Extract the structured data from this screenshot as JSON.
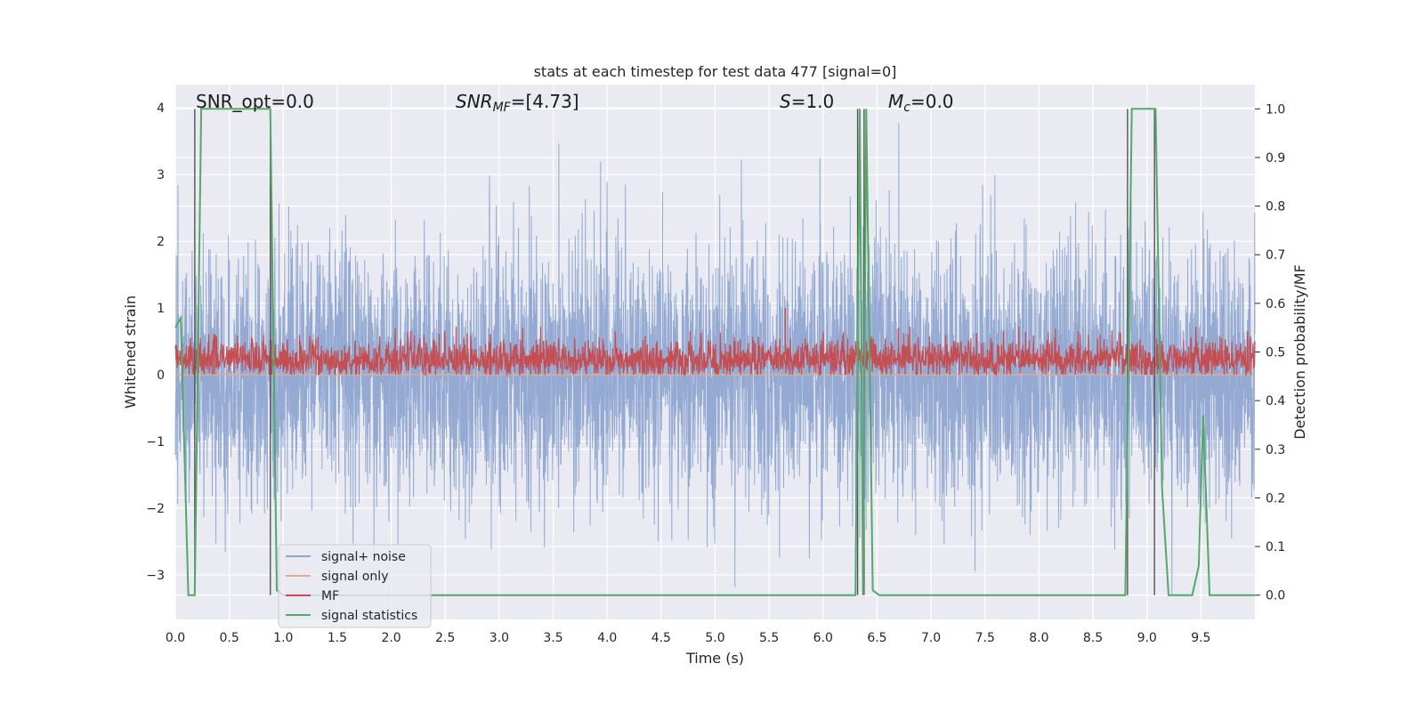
{
  "chart_data": {
    "type": "line",
    "title": "stats at each timestep for test data 477 [signal=0]",
    "xlabel": "Time (s)",
    "ylabel": "Whitened strain",
    "ylabel_right": "Detection probability/MF",
    "xlim": [
      0.0,
      10.0
    ],
    "ylim": [
      -3.67,
      4.35
    ],
    "ylim_right": [
      -0.05,
      1.05
    ],
    "xticks": [
      0.0,
      0.5,
      1.0,
      1.5,
      2.0,
      2.5,
      3.0,
      3.5,
      4.0,
      4.5,
      5.0,
      5.5,
      6.0,
      6.5,
      7.0,
      7.5,
      8.0,
      8.5,
      9.0,
      9.5
    ],
    "xtick_labels": [
      "0.0",
      "0.5",
      "1.0",
      "1.5",
      "2.0",
      "2.5",
      "3.0",
      "3.5",
      "4.0",
      "4.5",
      "5.0",
      "5.5",
      "6.0",
      "6.5",
      "7.0",
      "7.5",
      "8.0",
      "8.5",
      "9.0",
      "9.5"
    ],
    "yticks": [
      -3,
      -2,
      -1,
      0,
      1,
      2,
      3,
      4
    ],
    "ytick_labels": [
      "−3",
      "−2",
      "−1",
      "0",
      "1",
      "2",
      "3",
      "4"
    ],
    "yticks_right": [
      0.0,
      0.1,
      0.2,
      0.3,
      0.4,
      0.5,
      0.6,
      0.7,
      0.8,
      0.9,
      1.0
    ],
    "ytick_labels_right": [
      "0.0",
      "0.1",
      "0.2",
      "0.3",
      "0.4",
      "0.5",
      "0.6",
      "0.7",
      "0.8",
      "0.9",
      "1.0"
    ],
    "grid": true,
    "legend_position": "lower-left",
    "annotations": {
      "snr_opt": "SNR_opt=0.0",
      "snr_mf_prefix": "SNR",
      "snr_mf_sub": "MF",
      "snr_mf_value": "=[4.73]",
      "s_prefix": "S",
      "s_value": "=1.0",
      "mc_prefix": "M",
      "mc_sub": "c",
      "mc_value": "=0.0"
    },
    "series": [
      {
        "name": "signal+ noise",
        "color": "#8fa6d1",
        "description_axis": "left",
        "note": "dense whitened noise, roughly within [-2.5, 2.5] with occasional spikes to about 4 and -3.3",
        "y_range": [
          -3.3,
          4.0
        ]
      },
      {
        "name": "signal only",
        "color": "#e8a98f",
        "axis": "left",
        "values_constant": 0.0
      },
      {
        "name": "MF",
        "color": "#c44e52",
        "axis": "left",
        "note": "matched filter output fluctuating between about 0 and 0.7, peak about 1.0 near t=5.65",
        "y_range": [
          0.0,
          1.0
        ]
      },
      {
        "name": "signal statistics",
        "color": "#55a868",
        "axis": "right",
        "x": [
          0.0,
          0.05,
          0.12,
          0.18,
          0.24,
          0.3,
          0.36,
          0.42,
          0.48,
          0.54,
          0.6,
          0.66,
          0.72,
          0.78,
          0.84,
          0.88,
          0.94,
          1.0,
          2.0,
          3.0,
          4.0,
          5.0,
          6.0,
          6.3,
          6.34,
          6.37,
          6.4,
          6.46,
          6.52,
          7.0,
          8.0,
          8.8,
          8.86,
          8.92,
          8.98,
          9.04,
          9.08,
          9.14,
          9.2,
          9.3,
          9.42,
          9.48,
          9.52,
          9.58,
          9.64,
          9.7,
          10.0
        ],
        "values": [
          0.55,
          0.57,
          0.0,
          0.0,
          1.0,
          1.0,
          1.0,
          1.0,
          1.0,
          1.0,
          1.0,
          1.0,
          1.0,
          1.0,
          1.0,
          1.0,
          0.01,
          0.0,
          0.0,
          0.0,
          0.0,
          0.0,
          0.0,
          0.0,
          1.0,
          0.0,
          1.0,
          0.01,
          0.0,
          0.0,
          0.0,
          0.0,
          1.0,
          1.0,
          1.0,
          1.0,
          1.0,
          0.22,
          0.0,
          0.0,
          0.0,
          0.06,
          0.37,
          0.0,
          0.0,
          0.0,
          0.0
        ]
      }
    ],
    "vertical_markers": [
      0.18,
      0.88,
      6.32,
      6.38,
      8.82,
      9.07
    ]
  }
}
